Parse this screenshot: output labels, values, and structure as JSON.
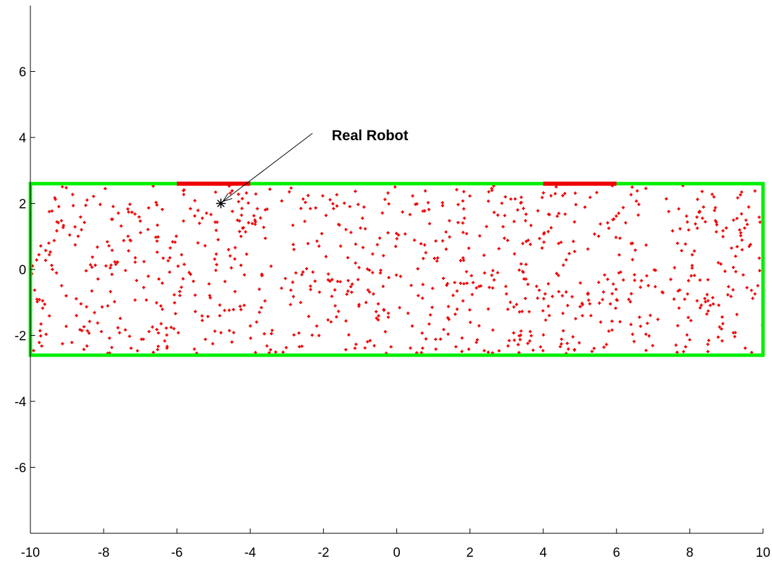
{
  "chart_data": {
    "type": "scatter",
    "title": "",
    "xlabel": "",
    "ylabel": "",
    "xlim": [
      -10,
      10
    ],
    "ylim": [
      -8,
      8
    ],
    "grid": false,
    "x_ticks": [
      -10,
      -8,
      -6,
      -4,
      -2,
      0,
      2,
      4,
      6,
      8,
      10
    ],
    "x_tick_labels": [
      "-10",
      "-8",
      "-6",
      "-4",
      "-2",
      "0",
      "2",
      "4",
      "6",
      "8",
      "10"
    ],
    "y_ticks": [
      -6,
      -4,
      -2,
      0,
      2,
      4,
      6
    ],
    "y_tick_labels": [
      "-6",
      "-4",
      "-2",
      "0",
      "2",
      "4",
      "6"
    ],
    "boundary": {
      "x": [
        -10,
        10
      ],
      "y": [
        -2.6,
        2.6
      ],
      "color": "#00ee00"
    },
    "markers_top_wall": [
      {
        "x": [
          -6,
          -4
        ],
        "y": 2.6,
        "color": "#ee0000"
      },
      {
        "x": [
          4,
          6
        ],
        "y": 2.6,
        "color": "#ee0000"
      }
    ],
    "particles": {
      "count": 900,
      "x_range": [
        -10,
        10
      ],
      "y_range": [
        -2.55,
        2.55
      ],
      "marker": "+",
      "color": "#ee0000"
    },
    "robot": {
      "x": -4.8,
      "y": 2.0,
      "marker": "*",
      "color": "#000000"
    },
    "annotation": {
      "text": "Real Robot",
      "text_x": -2.0,
      "text_y": 4.0,
      "arrow_from": [
        -2.3,
        4.0
      ],
      "arrow_to": [
        -4.8,
        2.0
      ]
    }
  }
}
